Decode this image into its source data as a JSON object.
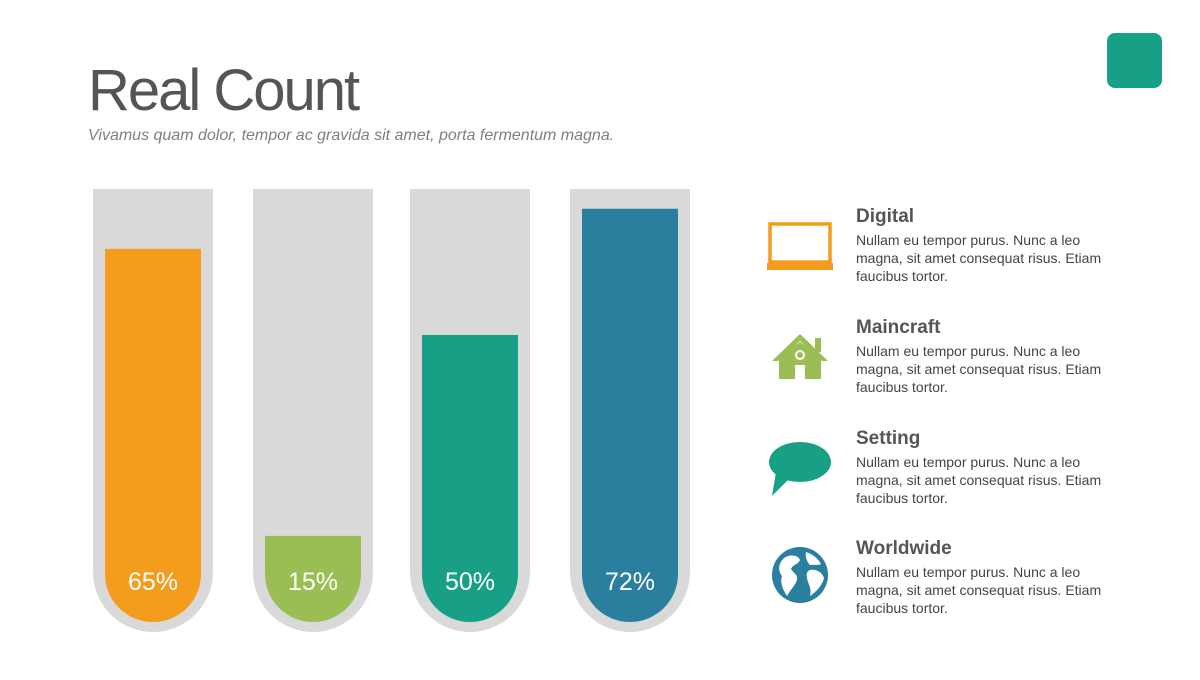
{
  "header": {
    "title": "Real Count",
    "subtitle": "Vivamus quam dolor, tempor ac gravida sit amet, porta fermentum magna."
  },
  "colors": {
    "accent": "#17a085",
    "orange": "#f49c1b",
    "green": "#9bbe54",
    "teal": "#17a085",
    "blue": "#2b7f9e",
    "track": "#d9d9d9"
  },
  "chart_data": {
    "type": "bar",
    "values": [
      65,
      15,
      50,
      72
    ],
    "labels": [
      "65%",
      "15%",
      "50%",
      "72%"
    ],
    "ylim": [
      0,
      100
    ],
    "grid": false,
    "bar_colors": [
      "#f49c1b",
      "#9bbe54",
      "#17a085",
      "#2b7f9e"
    ]
  },
  "legend": [
    {
      "title": "Digital",
      "description": "Nullam eu tempor purus. Nunc a leo magna, sit amet consequat risus. Etiam faucibus tortor.",
      "icon": "laptop-icon",
      "color": "#f49c1b"
    },
    {
      "title": "Maincraft",
      "description": "Nullam eu tempor purus. Nunc a leo magna, sit amet consequat risus. Etiam faucibus tortor.",
      "icon": "house-icon",
      "color": "#9bbe54"
    },
    {
      "title": "Setting",
      "description": "Nullam eu tempor purus. Nunc a leo magna, sit amet consequat risus. Etiam faucibus tortor.",
      "icon": "speech-bubble-icon",
      "color": "#17a085"
    },
    {
      "title": "Worldwide",
      "description": "Nullam eu tempor purus. Nunc a leo magna, sit amet consequat risus. Etiam faucibus tortor.",
      "icon": "globe-icon",
      "color": "#2b7f9e"
    }
  ]
}
